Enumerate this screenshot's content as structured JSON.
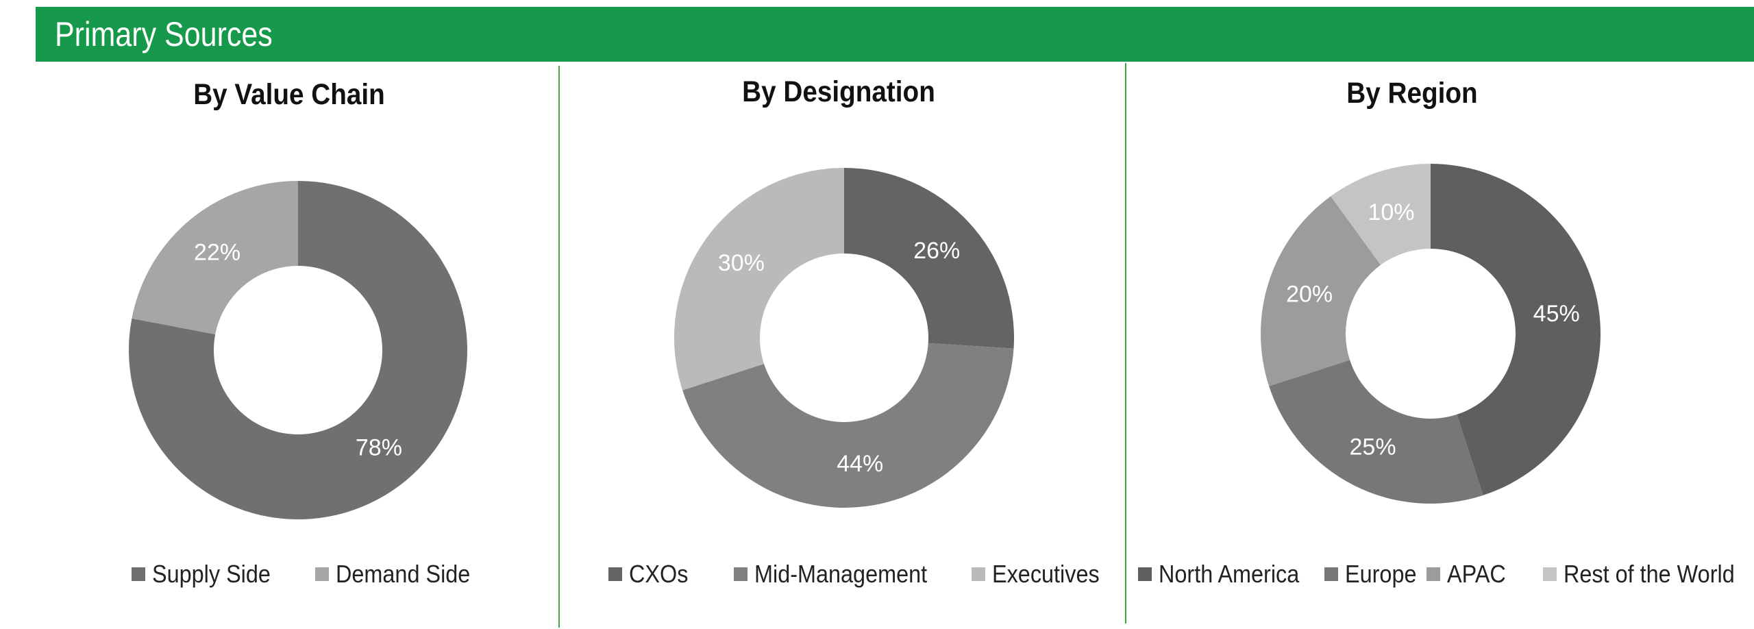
{
  "header": {
    "title": "Primary Sources"
  },
  "colors": {
    "banner": "#16994a",
    "divider": "#3aa83a",
    "label_text": "#ffffff"
  },
  "chart_data": [
    {
      "type": "pie",
      "style": "donut",
      "title": "By Value Chain",
      "legend_position": "bottom",
      "series": [
        {
          "name": "Supply Side",
          "value": 78,
          "label": "78%",
          "color": "#707070"
        },
        {
          "name": "Demand Side",
          "value": 22,
          "label": "22%",
          "color": "#a6a6a6"
        }
      ]
    },
    {
      "type": "pie",
      "style": "donut",
      "title": "By Designation",
      "legend_position": "bottom",
      "series": [
        {
          "name": "CXOs",
          "value": 26,
          "label": "26%",
          "color": "#646464"
        },
        {
          "name": "Mid-Management",
          "value": 44,
          "label": "44%",
          "color": "#808080"
        },
        {
          "name": "Executives",
          "value": 30,
          "label": "30%",
          "color": "#bababa"
        }
      ]
    },
    {
      "type": "pie",
      "style": "donut",
      "title": "By Region",
      "legend_position": "bottom",
      "series": [
        {
          "name": "North America",
          "value": 45,
          "label": "45%",
          "color": "#5f5f5f"
        },
        {
          "name": "Europe",
          "value": 25,
          "label": "25%",
          "color": "#777777"
        },
        {
          "name": "APAC",
          "value": 20,
          "label": "20%",
          "color": "#9c9c9c"
        },
        {
          "name": "Rest of the World",
          "value": 10,
          "label": "10%",
          "color": "#c4c4c4"
        }
      ]
    }
  ]
}
